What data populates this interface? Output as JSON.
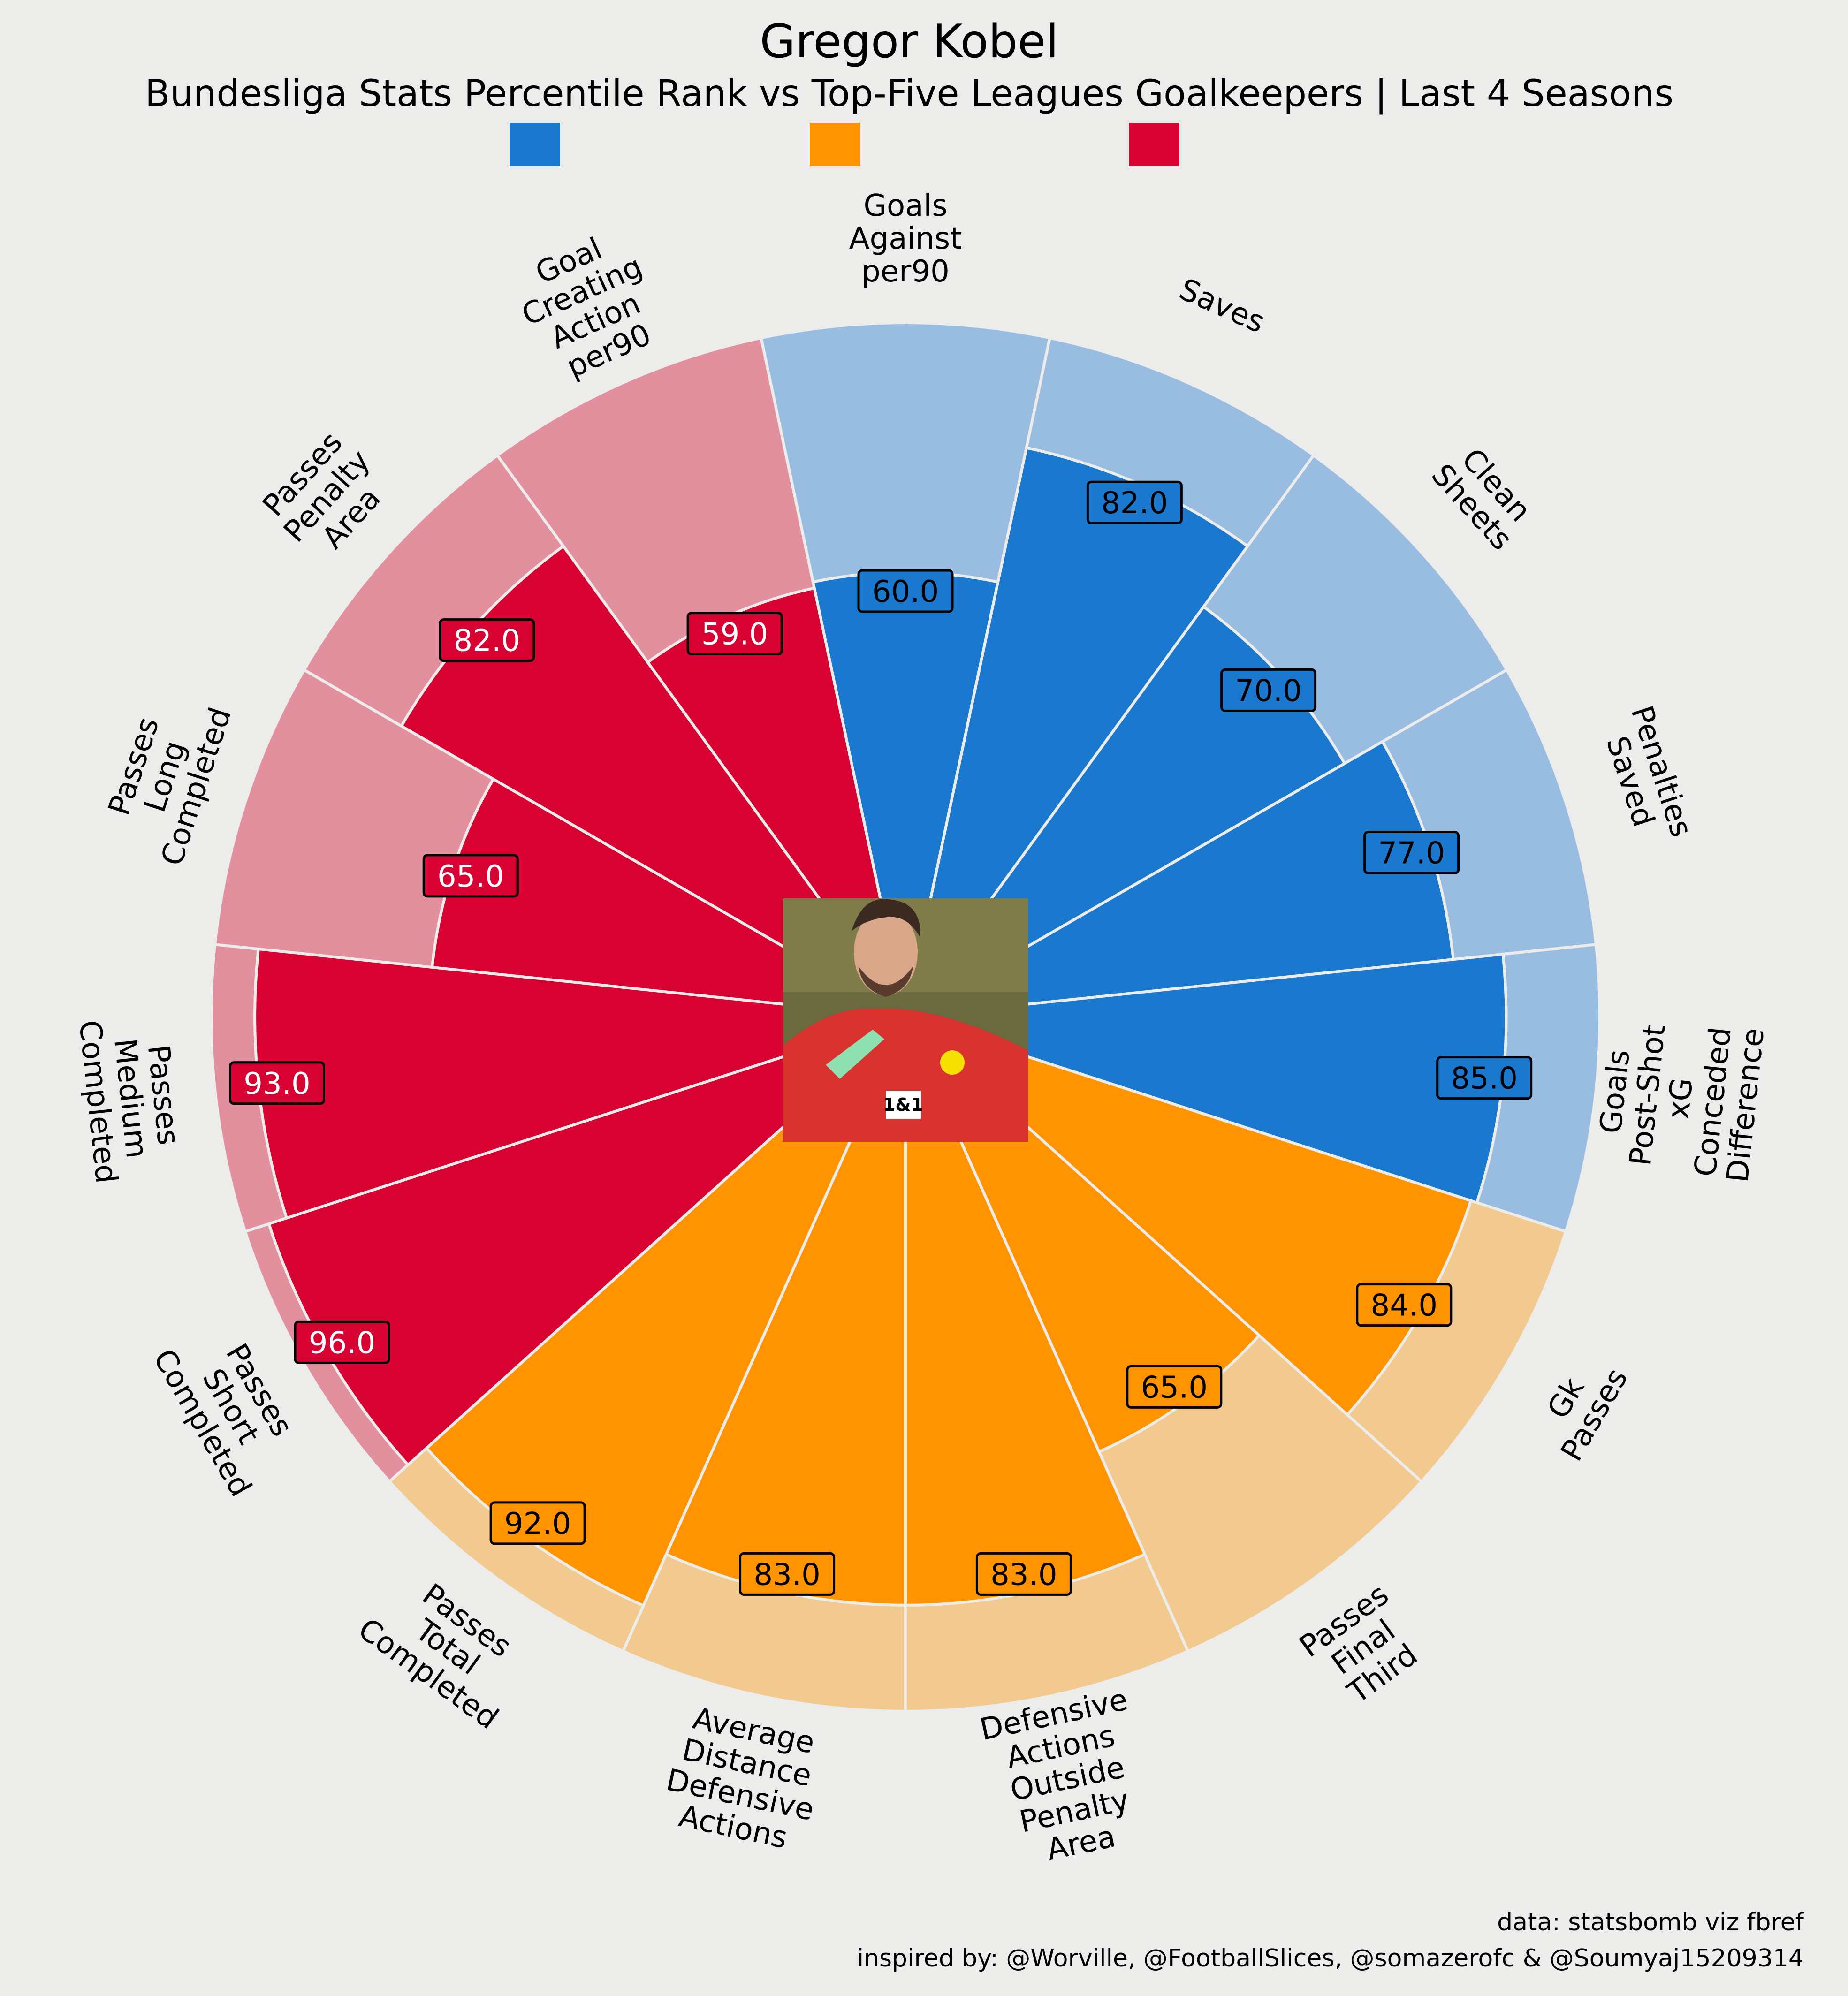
{
  "chart_data": {
    "type": "pizza",
    "title": "Gregor Kobel",
    "subtitle": "Bundesliga Stats Percentile Rank vs Top-Five Leagues Goalkeepers | Last 4 Seasons",
    "legend": [
      {
        "name": "",
        "color": "#1a78cf"
      },
      {
        "name": "",
        "color": "#ff9300"
      },
      {
        "name": "",
        "color": "#d70232"
      }
    ],
    "slices": [
      {
        "label": "Goals Against per90",
        "value": 60.0,
        "group": 0
      },
      {
        "label": "Saves",
        "value": 82.0,
        "group": 0
      },
      {
        "label": "Clean Sheets",
        "value": 70.0,
        "group": 0
      },
      {
        "label": "Penalties Saved",
        "value": 77.0,
        "group": 0
      },
      {
        "label": "Goals Post-Shot xG Conceded Difference",
        "value": 85.0,
        "group": 0
      },
      {
        "label": "Gk Passes",
        "value": 84.0,
        "group": 1
      },
      {
        "label": "Passes Final Third",
        "value": 65.0,
        "group": 1
      },
      {
        "label": "Defensive Actions Outside Penalty Area",
        "value": 83.0,
        "group": 1
      },
      {
        "label": "Average Distance Defensive Actions",
        "value": 83.0,
        "group": 1
      },
      {
        "label": "Passes Total Completed",
        "value": 92.0,
        "group": 1
      },
      {
        "label": "Passes Short Completed",
        "value": 96.0,
        "group": 2
      },
      {
        "label": "Passes Medium Completed",
        "value": 93.0,
        "group": 2
      },
      {
        "label": "Passes Long Completed",
        "value": 65.0,
        "group": 2
      },
      {
        "label": "Passes Penalty Area",
        "value": 82.0,
        "group": 2
      },
      {
        "label": "Goal Creating Action per90",
        "value": 59.0,
        "group": 2
      }
    ],
    "range": [
      0,
      100
    ]
  },
  "colors": {
    "background": "#ececea",
    "group_fill": [
      "#1a78cf",
      "#ff9300",
      "#d70232"
    ],
    "group_bg": [
      "#99bde0",
      "#f2c98f",
      "#e3909e"
    ],
    "value_text": [
      "#000000",
      "#000000",
      "#ffffff"
    ]
  },
  "credits": {
    "line1": "data: statsbomb viz fbref",
    "line2": "inspired by: @Worville, @FootballSlices, @somazerofc & @Soumyaj15209314"
  },
  "center_image": "player photo (goalkeeper in red jersey)"
}
